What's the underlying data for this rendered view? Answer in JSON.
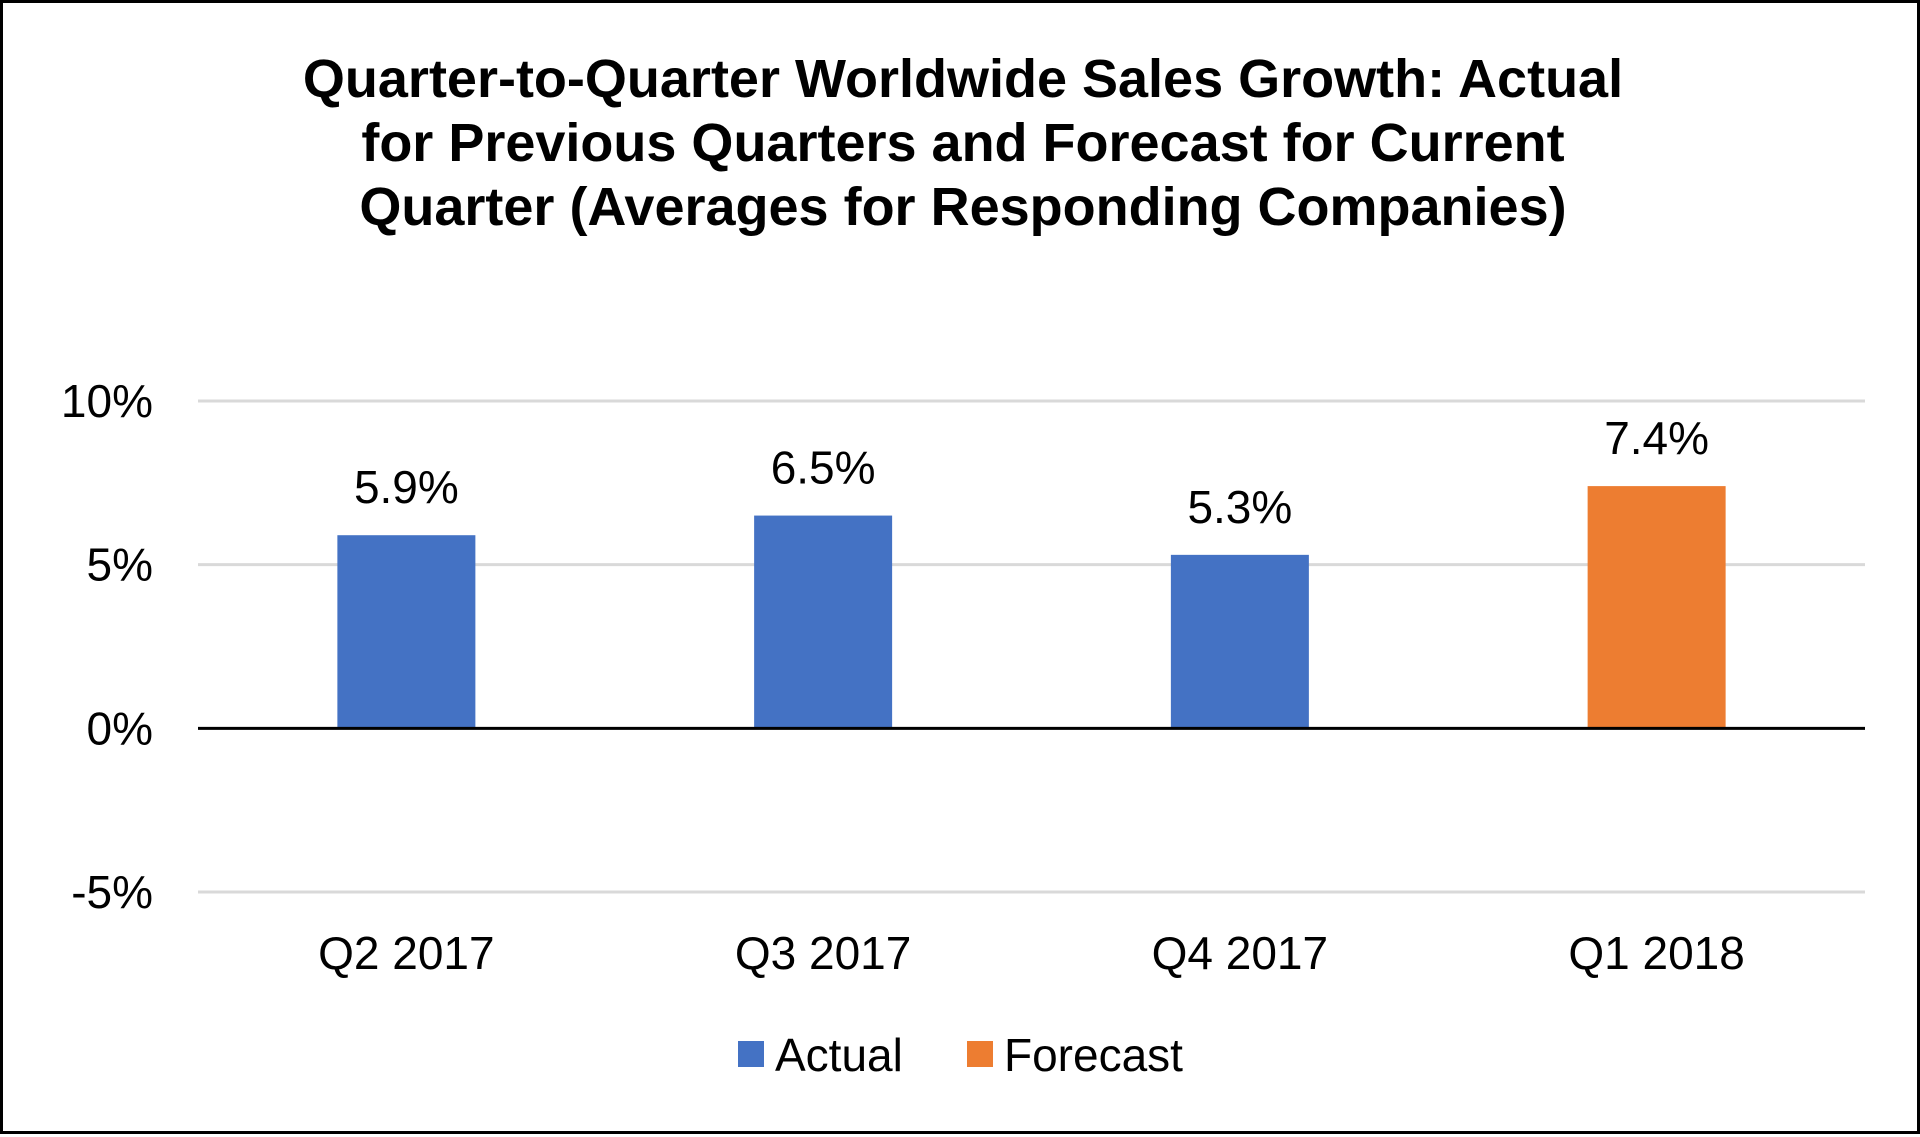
{
  "chart_data": {
    "type": "bar",
    "title_lines": [
      "Quarter-to-Quarter Worldwide Sales Growth: Actual",
      "for Previous Quarters and Forecast for Current",
      "Quarter (Averages for Responding Companies)"
    ],
    "categories": [
      "Q2 2017",
      "Q3 2017",
      "Q4 2017",
      "Q1 2018"
    ],
    "values": [
      5.9,
      6.5,
      5.3,
      7.4
    ],
    "data_labels": [
      "5.9%",
      "6.5%",
      "5.3%",
      "7.4%"
    ],
    "bar_series": [
      "Actual",
      "Actual",
      "Actual",
      "Forecast"
    ],
    "series": [
      {
        "name": "Actual",
        "color": "#4472C4"
      },
      {
        "name": "Forecast",
        "color": "#ED7D31"
      }
    ],
    "y_ticks": [
      {
        "value": 10,
        "label": "10%"
      },
      {
        "value": 5,
        "label": "5%"
      },
      {
        "value": 0,
        "label": "0%"
      },
      {
        "value": -5,
        "label": "-5%"
      }
    ],
    "ylim": [
      -5,
      10
    ],
    "xlabel": "",
    "ylabel": "",
    "grid": true,
    "legend_position": "bottom",
    "gridline_color": "#D9D9D9",
    "axis_color": "#000000"
  }
}
